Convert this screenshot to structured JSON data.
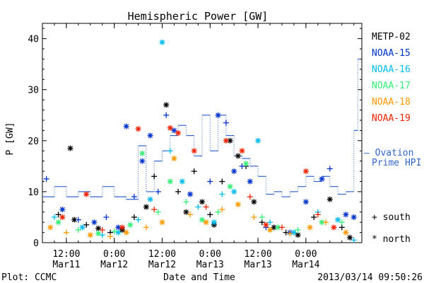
{
  "chart_data": {
    "type": "scatter",
    "title": "Hemispheric Power [GW]",
    "xlabel": "Date and Time",
    "ylabel": "P [GW]",
    "ylim": [
      0,
      43
    ],
    "yticks": [
      0,
      10,
      20,
      30,
      40
    ],
    "xlim": [
      "2013-03-11T06:00",
      "2013-03-14T14:00"
    ],
    "xticks": [
      {
        "t": "2013-03-11T12:00",
        "line1": "12:00",
        "line2": "Mar11"
      },
      {
        "t": "2013-03-12T00:00",
        "line1": "0:00",
        "line2": "Mar12"
      },
      {
        "t": "2013-03-12T12:00",
        "line1": "12:00",
        "line2": "Mar12"
      },
      {
        "t": "2013-03-13T00:00",
        "line1": "0:00",
        "line2": "Mar13"
      },
      {
        "t": "2013-03-13T12:00",
        "line1": "12:00",
        "line2": "Mar13"
      },
      {
        "t": "2013-03-14T00:00",
        "line1": "0:00",
        "line2": "Mar14"
      }
    ],
    "legend_placement": "right",
    "series": [
      {
        "name": "METP-02",
        "color": "#000000",
        "points": [
          [
            "2013-03-11T13:00",
            18.5,
            "north"
          ],
          [
            "2013-03-11T10:00",
            5.5,
            "south"
          ],
          [
            "2013-03-11T14:00",
            4.5,
            "north"
          ],
          [
            "2013-03-11T17:00",
            3.5,
            "south"
          ],
          [
            "2013-03-11T20:00",
            2.8,
            "north"
          ],
          [
            "2013-03-11T23:00",
            2.0,
            "south"
          ],
          [
            "2013-03-12T02:00",
            2.5,
            "north"
          ],
          [
            "2013-03-12T05:00",
            5.0,
            "south"
          ],
          [
            "2013-03-12T08:00",
            7.0,
            "north"
          ],
          [
            "2013-03-12T10:00",
            13.0,
            "south"
          ],
          [
            "2013-03-12T13:00",
            27.0,
            "north"
          ],
          [
            "2013-03-12T16:00",
            10.0,
            "south"
          ],
          [
            "2013-03-12T18:00",
            6.0,
            "north"
          ],
          [
            "2013-03-12T20:00",
            14.0,
            "south"
          ],
          [
            "2013-03-12T22:00",
            8.0,
            "north"
          ],
          [
            "2013-03-13T00:00",
            5.5,
            "south"
          ],
          [
            "2013-03-13T01:00",
            3.5,
            "north"
          ],
          [
            "2013-03-13T03:00",
            12.0,
            "south"
          ],
          [
            "2013-03-13T05:00",
            20.0,
            "north"
          ],
          [
            "2013-03-13T07:00",
            17.0,
            "north"
          ],
          [
            "2013-03-13T09:00",
            15.0,
            "south"
          ],
          [
            "2013-03-13T11:00",
            8.0,
            "north"
          ],
          [
            "2013-03-13T13:00",
            4.0,
            "south"
          ],
          [
            "2013-03-13T16:00",
            3.0,
            "north"
          ],
          [
            "2013-03-13T19:00",
            2.0,
            "south"
          ],
          [
            "2013-03-13T22:00",
            1.5,
            "north"
          ],
          [
            "2013-03-14T02:00",
            5.0,
            "south"
          ],
          [
            "2013-03-14T06:00",
            8.5,
            "north"
          ],
          [
            "2013-03-14T09:00",
            3.0,
            "south"
          ],
          [
            "2013-03-14T11:00",
            1.0,
            "north"
          ]
        ]
      },
      {
        "name": "NOAA-15",
        "color": "#0033cc",
        "points": [
          [
            "2013-03-11T07:00",
            12.5,
            "south"
          ],
          [
            "2013-03-11T11:00",
            6.5,
            "north"
          ],
          [
            "2013-03-11T15:00",
            4.5,
            "south"
          ],
          [
            "2013-03-11T19:00",
            4.0,
            "north"
          ],
          [
            "2013-03-11T22:00",
            5.0,
            "south"
          ],
          [
            "2013-03-12T01:00",
            3.0,
            "north"
          ],
          [
            "2013-03-12T03:00",
            22.8,
            "north"
          ],
          [
            "2013-03-12T05:00",
            9.0,
            "south"
          ],
          [
            "2013-03-12T07:00",
            16.0,
            "north"
          ],
          [
            "2013-03-12T09:00",
            21.0,
            "north"
          ],
          [
            "2013-03-12T11:00",
            10.0,
            "south"
          ],
          [
            "2013-03-12T13:00",
            25.0,
            "south"
          ],
          [
            "2013-03-12T15:00",
            22.0,
            "north"
          ],
          [
            "2013-03-12T19:00",
            9.5,
            "north"
          ],
          [
            "2013-03-13T00:00",
            12.0,
            "south"
          ],
          [
            "2013-03-13T02:00",
            25.0,
            "north"
          ],
          [
            "2013-03-13T04:00",
            23.5,
            "south"
          ],
          [
            "2013-03-13T06:00",
            14.0,
            "north"
          ],
          [
            "2013-03-13T08:00",
            15.0,
            "south"
          ],
          [
            "2013-03-13T10:00",
            12.0,
            "north"
          ],
          [
            "2013-03-13T14:00",
            3.0,
            "south"
          ],
          [
            "2013-03-13T20:00",
            2.0,
            "north"
          ],
          [
            "2013-03-14T00:00",
            8.0,
            "north"
          ],
          [
            "2013-03-14T04:00",
            12.5,
            "north"
          ],
          [
            "2013-03-14T06:00",
            14.5,
            "south"
          ],
          [
            "2013-03-14T10:00",
            5.5,
            "north"
          ],
          [
            "2013-03-14T12:00",
            5.0,
            "north"
          ]
        ]
      },
      {
        "name": "NOAA-16",
        "color": "#00bbee",
        "points": [
          [
            "2013-03-11T09:00",
            5.0,
            "south"
          ],
          [
            "2013-03-11T16:00",
            3.0,
            "north"
          ],
          [
            "2013-03-11T21:00",
            1.5,
            "south"
          ],
          [
            "2013-03-12T01:00",
            2.0,
            "north"
          ],
          [
            "2013-03-12T06:00",
            4.5,
            "south"
          ],
          [
            "2013-03-12T09:00",
            8.5,
            "north"
          ],
          [
            "2013-03-12T12:00",
            39.3,
            "north"
          ],
          [
            "2013-03-12T14:00",
            18.0,
            "south"
          ],
          [
            "2013-03-12T17:00",
            12.0,
            "north"
          ],
          [
            "2013-03-12T21:00",
            7.0,
            "south"
          ],
          [
            "2013-03-13T01:00",
            4.0,
            "north"
          ],
          [
            "2013-03-13T03:00",
            9.5,
            "south"
          ],
          [
            "2013-03-13T06:00",
            10.0,
            "north"
          ],
          [
            "2013-03-13T12:00",
            20.0,
            "north"
          ],
          [
            "2013-03-13T15:00",
            4.0,
            "south"
          ],
          [
            "2013-03-13T21:00",
            2.0,
            "north"
          ],
          [
            "2013-03-14T03:00",
            6.0,
            "south"
          ],
          [
            "2013-03-14T08:00",
            4.5,
            "north"
          ],
          [
            "2013-03-14T12:00",
            0.5,
            "south"
          ]
        ]
      },
      {
        "name": "NOAA-17",
        "color": "#33ee77",
        "points": [
          [
            "2013-03-11T10:00",
            4.0,
            "north"
          ],
          [
            "2013-03-11T15:00",
            2.5,
            "south"
          ],
          [
            "2013-03-11T20:00",
            1.8,
            "north"
          ],
          [
            "2013-03-12T00:00",
            2.2,
            "south"
          ],
          [
            "2013-03-12T04:00",
            3.5,
            "north"
          ],
          [
            "2013-03-12T07:00",
            17.5,
            "north"
          ],
          [
            "2013-03-12T11:00",
            6.0,
            "south"
          ],
          [
            "2013-03-12T14:00",
            12.0,
            "north"
          ],
          [
            "2013-03-12T18:00",
            8.0,
            "south"
          ],
          [
            "2013-03-12T22:00",
            4.5,
            "north"
          ],
          [
            "2013-03-13T02:00",
            6.0,
            "south"
          ],
          [
            "2013-03-13T05:00",
            11.0,
            "north"
          ],
          [
            "2013-03-13T09:00",
            15.5,
            "north"
          ],
          [
            "2013-03-13T13:00",
            5.0,
            "south"
          ],
          [
            "2013-03-13T17:00",
            3.0,
            "north"
          ],
          [
            "2013-03-13T22:00",
            2.5,
            "south"
          ],
          [
            "2013-03-14T04:00",
            4.0,
            "north"
          ],
          [
            "2013-03-14T09:00",
            4.0,
            "south"
          ]
        ]
      },
      {
        "name": "NOAA-18",
        "color": "#ff9900",
        "points": [
          [
            "2013-03-11T08:00",
            3.0,
            "north"
          ],
          [
            "2013-03-11T12:00",
            2.0,
            "south"
          ],
          [
            "2013-03-11T18:00",
            1.5,
            "north"
          ],
          [
            "2013-03-11T23:00",
            1.2,
            "south"
          ],
          [
            "2013-03-12T03:00",
            2.0,
            "north"
          ],
          [
            "2013-03-12T08:00",
            3.0,
            "south"
          ],
          [
            "2013-03-12T12:00",
            4.0,
            "north"
          ],
          [
            "2013-03-12T15:00",
            16.5,
            "north"
          ],
          [
            "2013-03-12T19:00",
            5.5,
            "south"
          ],
          [
            "2013-03-12T23:00",
            4.0,
            "north"
          ],
          [
            "2013-03-13T03:00",
            6.5,
            "south"
          ],
          [
            "2013-03-13T07:00",
            7.5,
            "north"
          ],
          [
            "2013-03-13T11:00",
            5.0,
            "south"
          ],
          [
            "2013-03-13T15:00",
            2.5,
            "north"
          ],
          [
            "2013-03-13T20:00",
            1.8,
            "south"
          ],
          [
            "2013-03-14T01:00",
            3.0,
            "north"
          ],
          [
            "2013-03-14T05:00",
            4.0,
            "south"
          ],
          [
            "2013-03-14T10:00",
            2.0,
            "north"
          ]
        ]
      },
      {
        "name": "NOAA-19",
        "color": "#ee2200",
        "points": [
          [
            "2013-03-11T11:00",
            5.0,
            "north"
          ],
          [
            "2013-03-11T17:00",
            9.5,
            "north"
          ],
          [
            "2013-03-11T21:00",
            2.5,
            "south"
          ],
          [
            "2013-03-12T02:00",
            3.0,
            "north"
          ],
          [
            "2013-03-12T06:00",
            22.3,
            "north"
          ],
          [
            "2013-03-12T10:00",
            6.5,
            "south"
          ],
          [
            "2013-03-12T14:00",
            22.5,
            "north"
          ],
          [
            "2013-03-12T16:00",
            21.5,
            "north"
          ],
          [
            "2013-03-12T20:00",
            18.0,
            "north"
          ],
          [
            "2013-03-12T23:00",
            7.0,
            "south"
          ],
          [
            "2013-03-13T04:00",
            20.0,
            "north"
          ],
          [
            "2013-03-13T08:00",
            18.0,
            "north"
          ],
          [
            "2013-03-13T10:00",
            9.0,
            "south"
          ],
          [
            "2013-03-13T14:00",
            3.5,
            "north"
          ],
          [
            "2013-03-13T18:00",
            3.0,
            "south"
          ],
          [
            "2013-03-14T00:00",
            14.0,
            "north"
          ],
          [
            "2013-03-14T03:00",
            5.5,
            "south"
          ],
          [
            "2013-03-14T07:00",
            3.0,
            "north"
          ]
        ]
      }
    ],
    "hpi": {
      "name": "Ovation Prime HPI",
      "legend_label": "– Ovation Prime HPI",
      "color": "#3366cc",
      "steps": [
        [
          "2013-03-11T06:00",
          9.0
        ],
        [
          "2013-03-11T09:00",
          11.0
        ],
        [
          "2013-03-11T12:00",
          9.0
        ],
        [
          "2013-03-11T15:00",
          10.0
        ],
        [
          "2013-03-11T18:00",
          9.0
        ],
        [
          "2013-03-11T21:00",
          11.0
        ],
        [
          "2013-03-12T00:00",
          9.0
        ],
        [
          "2013-03-12T03:00",
          8.5
        ],
        [
          "2013-03-12T06:00",
          19.0
        ],
        [
          "2013-03-12T08:00",
          10.0
        ],
        [
          "2013-03-12T10:00",
          16.0
        ],
        [
          "2013-03-12T12:00",
          18.0
        ],
        [
          "2013-03-12T14:00",
          21.0
        ],
        [
          "2013-03-12T16:00",
          23.0
        ],
        [
          "2013-03-12T18:00",
          21.0
        ],
        [
          "2013-03-12T20:00",
          17.0
        ],
        [
          "2013-03-12T22:00",
          25.0
        ],
        [
          "2013-03-13T00:00",
          18.0
        ],
        [
          "2013-03-13T02:00",
          25.0
        ],
        [
          "2013-03-13T04:00",
          21.0
        ],
        [
          "2013-03-13T06:00",
          17.0
        ],
        [
          "2013-03-13T08:00",
          16.5
        ],
        [
          "2013-03-13T10:00",
          15.0
        ],
        [
          "2013-03-13T12:00",
          13.0
        ],
        [
          "2013-03-13T14:00",
          9.5
        ],
        [
          "2013-03-13T16:00",
          10.0
        ],
        [
          "2013-03-13T18:00",
          9.0
        ],
        [
          "2013-03-13T20:00",
          10.0
        ],
        [
          "2013-03-13T22:00",
          11.0
        ],
        [
          "2013-03-14T00:00",
          13.0
        ],
        [
          "2013-03-14T02:00",
          12.0
        ],
        [
          "2013-03-14T04:00",
          13.0
        ],
        [
          "2013-03-14T06:00",
          11.0
        ],
        [
          "2013-03-14T08:00",
          9.5
        ],
        [
          "2013-03-14T10:00",
          10.0
        ],
        [
          "2013-03-14T12:00",
          22.0
        ],
        [
          "2013-03-14T13:00",
          36.0
        ]
      ]
    },
    "marker_legend": {
      "south": "+ south",
      "north": "* north"
    }
  },
  "footer": {
    "source": "Plot: CCMC",
    "timestamp": "2013/03/14 09:50:26"
  }
}
